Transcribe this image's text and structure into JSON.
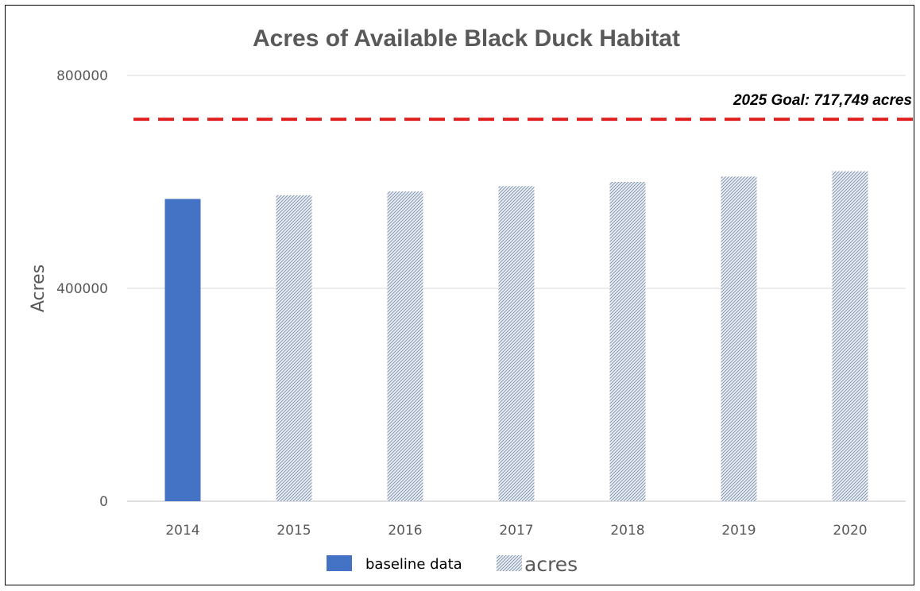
{
  "chart_data": {
    "type": "bar",
    "title": "Acres of Available Black Duck Habitat",
    "ylabel": "Acres",
    "xlabel": "",
    "ylim": [
      0,
      800000
    ],
    "yticks": [
      "0",
      "400000",
      "800000"
    ],
    "ytick_values": [
      0,
      400000,
      800000
    ],
    "categories": [
      "2014",
      "2015",
      "2016",
      "2017",
      "2018",
      "2019",
      "2020"
    ],
    "values": [
      568000,
      575000,
      582000,
      592000,
      600000,
      610000,
      620000
    ],
    "series": [
      {
        "name": "baseline data",
        "categories": [
          "2014"
        ],
        "color": "#4472c4",
        "pattern": "solid"
      },
      {
        "name": "acres",
        "categories": [
          "2015",
          "2016",
          "2017",
          "2018",
          "2019",
          "2020"
        ],
        "color": "#8497b0",
        "pattern": "diagonal-hatch"
      }
    ],
    "goal": {
      "value": 717749,
      "label": "2025 Goal: 717,749 acres",
      "color": "#e02020",
      "style": "dashed"
    },
    "grid": true,
    "legend_position": "bottom-center"
  }
}
